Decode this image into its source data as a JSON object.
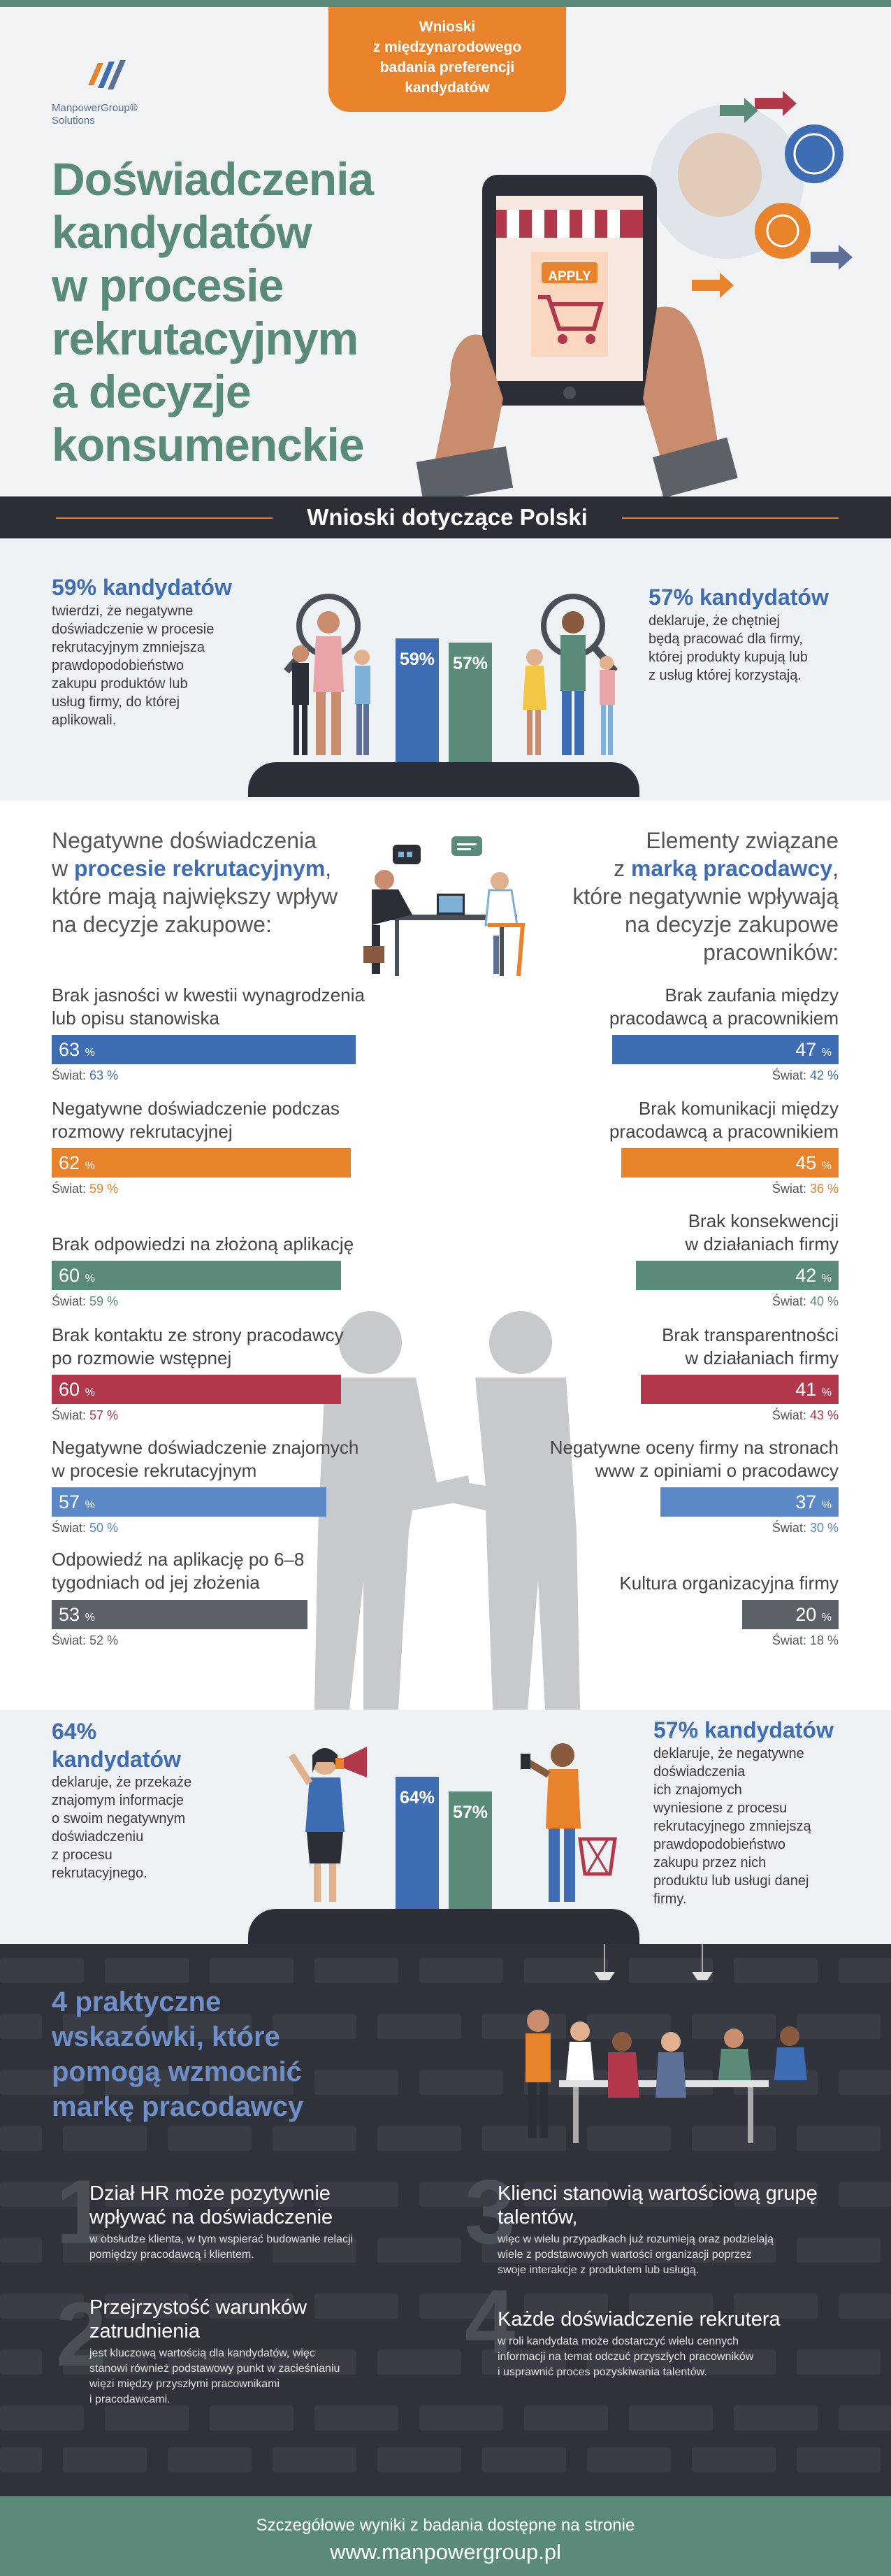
{
  "header": {
    "ribbon_lines": [
      "Wnioski",
      "z międzynarodowego",
      "badania preferencji",
      "kandydatów"
    ],
    "logo_name": "ManpowerGroup®",
    "logo_sub": "Solutions",
    "title_lines": [
      "Doświadczenia",
      "kandydatów",
      "w procesie",
      "rekrutacyjnym",
      "a decyzje",
      "konsumenckie"
    ],
    "apply_label": "APPLY",
    "colors": {
      "green": "#5a8a78",
      "orange": "#e8832c",
      "blue": "#3f6db3",
      "dark": "#2b2e37"
    }
  },
  "section_title": "Wnioski dotyczące Polski",
  "stats_top": {
    "left": {
      "headline": "59% kandydatów",
      "body": [
        "twierdzi, że negatywne",
        "doświadczenie w procesie",
        "rekrutacyjnym zmniejsza",
        "prawdopodobieństwo",
        "zakupu produktów lub",
        "usług firmy, do której",
        "aplikowali."
      ]
    },
    "bars": [
      {
        "label": "59%",
        "value": 59,
        "color": "#3f6db3"
      },
      {
        "label": "57%",
        "value": 57,
        "color": "#5a8a78"
      }
    ],
    "right": {
      "headline": "57% kandydatów",
      "body": [
        "deklaruje, że chętniej",
        "będą pracować dla firmy,",
        "której produkty kupują lub",
        "z usług której korzystają."
      ]
    }
  },
  "negative": {
    "left_heading": {
      "line1": "Negatywne doświadczenia",
      "line2_pre": "w ",
      "line2_bold": "procesie rekrutacyjnym",
      "line2_post": ",",
      "line3": "które mają największy wpływ",
      "line4": "na decyzje zakupowe:"
    },
    "right_heading": {
      "line1": "Elementy związane",
      "line2_pre": "z ",
      "line2_bold": "marką pracodawcy",
      "line2_post": ",",
      "line3": "które negatywnie wpływają",
      "line4": "na decyzje zakupowe",
      "line5": "pracowników:"
    },
    "world_prefix": "Świat:",
    "pct": "%",
    "left_items": [
      {
        "label": [
          "Brak jasności w kwestii wynagrodzenia",
          "lub opisu stanowiska"
        ],
        "value": 63,
        "world": 63,
        "color": "#3f6db3"
      },
      {
        "label": [
          "Negatywne doświadczenie podczas",
          "rozmowy rekrutacyjnej"
        ],
        "value": 62,
        "world": 59,
        "color": "#e8832c"
      },
      {
        "label": [
          "Brak odpowiedzi na złożoną aplikację"
        ],
        "value": 60,
        "world": 59,
        "color": "#5a8a78"
      },
      {
        "label": [
          "Brak kontaktu ze strony pracodawcy",
          "po rozmowie wstępnej"
        ],
        "value": 60,
        "world": 57,
        "color": "#b2384c"
      },
      {
        "label": [
          "Negatywne doświadczenie znajomych",
          "w procesie rekrutacyjnym"
        ],
        "value": 57,
        "world": 50,
        "color": "#5b88c6"
      },
      {
        "label": [
          "Odpowiedź na aplikację po 6–8",
          "tygodniach od jej złożenia"
        ],
        "value": 53,
        "world": 52,
        "color": "#5c6068"
      }
    ],
    "right_items": [
      {
        "label": [
          "Brak zaufania między",
          "pracodawcą a pracownikiem"
        ],
        "value": 47,
        "world": 42,
        "color": "#3f6db3"
      },
      {
        "label": [
          "Brak komunikacji między",
          "pracodawcą a pracownikiem"
        ],
        "value": 45,
        "world": 36,
        "color": "#e8832c"
      },
      {
        "label": [
          "Brak konsekwencji",
          "w działaniach firmy"
        ],
        "value": 42,
        "world": 40,
        "color": "#5a8a78"
      },
      {
        "label": [
          "Brak transparentności",
          "w działaniach firmy"
        ],
        "value": 41,
        "world": 43,
        "color": "#b2384c"
      },
      {
        "label": [
          "Negatywne oceny firmy na stronach",
          "www z opiniami o pracodawcy"
        ],
        "value": 37,
        "world": 30,
        "color": "#5b88c6"
      },
      {
        "label": [
          "Kultura organizacyjna firmy"
        ],
        "value": 20,
        "world": 18,
        "color": "#5c6068"
      }
    ]
  },
  "stats_bottom": {
    "left": {
      "headline": [
        "64%",
        "kandydatów"
      ],
      "body": [
        "deklaruje, że przekaże",
        "znajomym informacje",
        "o swoim negatywnym",
        "doświadczeniu",
        "z procesu",
        "rekrutacyjnego."
      ]
    },
    "bars": [
      {
        "label": "64%",
        "value": 64,
        "color": "#3f6db3"
      },
      {
        "label": "57%",
        "value": 57,
        "color": "#5a8a78"
      }
    ],
    "right": {
      "headline": "57% kandydatów",
      "body": [
        "deklaruje, że negatywne",
        "doświadczenia",
        "ich znajomych",
        "wyniesione z procesu",
        "rekrutacyjnego zmniejszą",
        "prawdopodobieństwo",
        "zakupu przez nich",
        "produktu lub usługi danej",
        "firmy."
      ]
    }
  },
  "tips": {
    "title_lines": [
      "4 praktyczne",
      "wskazówki, które",
      "pomogą wzmocnić",
      "markę pracodawcy"
    ],
    "items": [
      {
        "num": "1",
        "head": [
          "Dział HR może pozytywnie",
          "wpływać na doświadczenie"
        ],
        "body": [
          "w obsłudze klienta, w tym wspierać budowanie relacji",
          "pomiędzy pracodawcą i klientem."
        ]
      },
      {
        "num": "2",
        "head": [
          "Przejrzystość warunków",
          "zatrudnienia"
        ],
        "body": [
          "jest kluczową wartością dla kandydatów, więc",
          "stanowi również podstawowy punkt w zacieśnianiu",
          "więzi między przyszłymi pracownikami",
          "i pracodawcami."
        ]
      },
      {
        "num": "3",
        "head": [
          "Klienci stanowią wartościową grupę",
          "talentów,"
        ],
        "body": [
          "więc w wielu przypadkach już rozumieją oraz podzielają",
          "wiele z podstawowych wartości organizacji poprzez",
          "swoje interakcje z produktem lub usługą."
        ]
      },
      {
        "num": "4",
        "head": [
          "Każde doświadczenie rekrutera"
        ],
        "body": [
          "w roli kandydata może dostarczyć wielu cennych",
          "informacji na temat odczuć przyszłych pracowników",
          "i usprawnić proces pozyskiwania talentów."
        ]
      }
    ]
  },
  "footer": {
    "line1": "Szczegółowe wyniki z badania dostępne na stronie",
    "line2": "www.manpowergroup.pl"
  }
}
